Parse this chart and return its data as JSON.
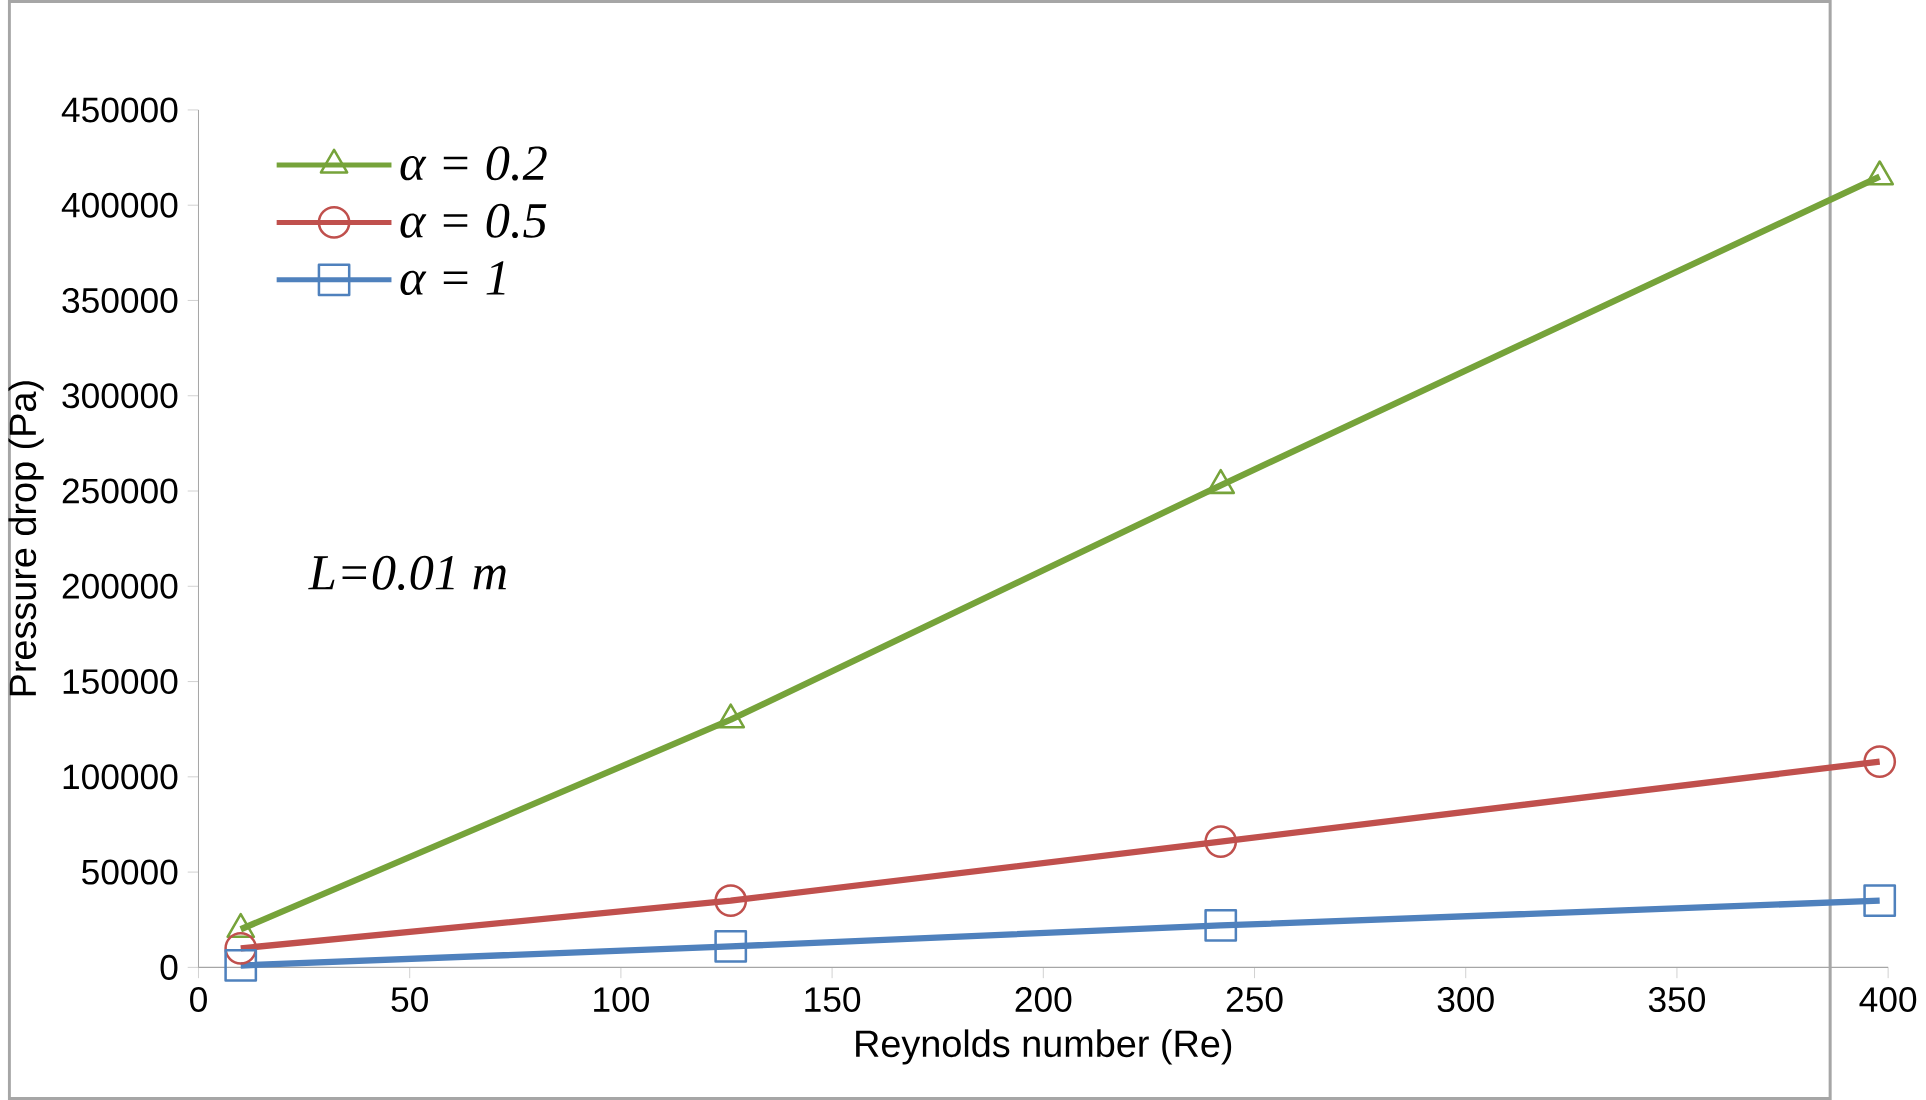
{
  "chart_data": {
    "type": "line",
    "xlabel": "Reynolds number (Re)",
    "ylabel": "Pressure drop (Pa)",
    "x": [
      10,
      126,
      242,
      398
    ],
    "series": [
      {
        "name": "α = 0.2",
        "color": "#76a33a",
        "marker": "triangle",
        "values": [
          20000,
          130000,
          253000,
          415000
        ]
      },
      {
        "name": "α = 0.5",
        "color": "#c0504d",
        "marker": "circle",
        "values": [
          10000,
          35000,
          66000,
          108000
        ]
      },
      {
        "name": "α = 1",
        "color": "#4f81bd",
        "marker": "square",
        "values": [
          1000,
          11000,
          22000,
          35000
        ]
      }
    ],
    "xlim": [
      0,
      400
    ],
    "xticks": [
      0,
      50,
      100,
      150,
      200,
      250,
      300,
      350,
      400
    ],
    "ylim": [
      0,
      450000
    ],
    "yticks": [
      0,
      50000,
      100000,
      150000,
      200000,
      250000,
      300000,
      350000,
      400000,
      450000
    ],
    "legend": "top left",
    "grid": false,
    "annotations": [
      "L=0.01 m"
    ]
  }
}
